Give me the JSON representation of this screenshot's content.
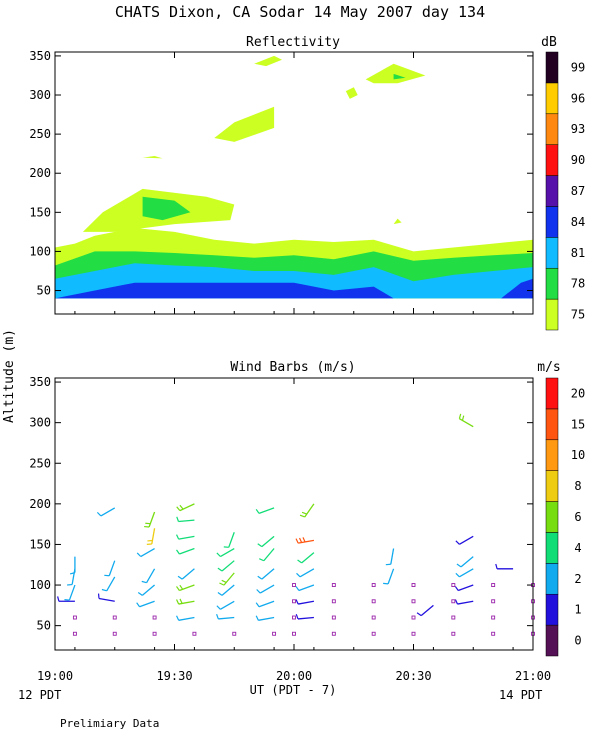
{
  "title": "CHATS Dixon, CA  Sodar  14 May 2007  day 134",
  "footer_note": "Prelimiary Data",
  "xaxis": {
    "xlabel": "UT  (PDT - 7)",
    "ticks": [
      "19:00",
      "19:30",
      "20:00",
      "20:30",
      "21:00"
    ],
    "tick_values_min": [
      0,
      30,
      60,
      90,
      120
    ],
    "range_min": [
      0,
      120
    ],
    "left_date": "12 PDT",
    "right_date": "14 PDT"
  },
  "ylabel": "Altitude (m)",
  "chart_data": [
    {
      "type": "heatmap",
      "title": "Reflectivity",
      "ylim": [
        20,
        355
      ],
      "yticks": [
        50,
        100,
        150,
        200,
        250,
        300,
        350
      ],
      "colorbar": {
        "unit": "dB",
        "levels": [
          "75",
          "78",
          "81",
          "84",
          "87",
          "90",
          "93",
          "96",
          "99"
        ],
        "colors": [
          "#ccff22",
          "#22dd44",
          "#11bbff",
          "#1133ee",
          "#5511aa",
          "#ff1111",
          "#ff8811",
          "#ffcc00",
          "#220022"
        ]
      },
      "layers": [
        {
          "level": "75",
          "color": "#ccff22",
          "top": [
            [
              0,
              105
            ],
            [
              5,
              110
            ],
            [
              10,
              120
            ],
            [
              20,
              130
            ],
            [
              30,
              125
            ],
            [
              40,
              115
            ],
            [
              50,
              110
            ],
            [
              60,
              115
            ],
            [
              70,
              112
            ],
            [
              80,
              115
            ],
            [
              90,
              100
            ],
            [
              100,
              105
            ],
            [
              110,
              110
            ],
            [
              120,
              115
            ]
          ],
          "bottom": [
            [
              0,
              40
            ],
            [
              120,
              40
            ]
          ]
        },
        {
          "level": "78",
          "color": "#22dd44",
          "top": [
            [
              0,
              82
            ],
            [
              10,
              100
            ],
            [
              20,
              100
            ],
            [
              30,
              98
            ],
            [
              40,
              95
            ],
            [
              50,
              92
            ],
            [
              60,
              95
            ],
            [
              70,
              90
            ],
            [
              80,
              100
            ],
            [
              90,
              88
            ],
            [
              100,
              92
            ],
            [
              110,
              95
            ],
            [
              120,
              98
            ]
          ],
          "bottom": [
            [
              0,
              40
            ],
            [
              120,
              40
            ]
          ]
        },
        {
          "level": "81",
          "color": "#11bbff",
          "top": [
            [
              0,
              65
            ],
            [
              10,
              75
            ],
            [
              20,
              85
            ],
            [
              30,
              82
            ],
            [
              40,
              80
            ],
            [
              50,
              75
            ],
            [
              60,
              75
            ],
            [
              70,
              70
            ],
            [
              80,
              80
            ],
            [
              90,
              62
            ],
            [
              100,
              70
            ],
            [
              110,
              75
            ],
            [
              120,
              80
            ]
          ],
          "bottom": [
            [
              0,
              40
            ],
            [
              120,
              40
            ]
          ]
        },
        {
          "level": "84",
          "color": "#1133ee",
          "top": [
            [
              0,
              40
            ],
            [
              10,
              50
            ],
            [
              20,
              60
            ],
            [
              30,
              60
            ],
            [
              40,
              60
            ],
            [
              50,
              60
            ],
            [
              60,
              60
            ],
            [
              70,
              50
            ],
            [
              80,
              55
            ],
            [
              85,
              40
            ],
            [
              112,
              40
            ],
            [
              117,
              60
            ],
            [
              120,
              65
            ]
          ],
          "bottom": [
            [
              0,
              40
            ],
            [
              120,
              40
            ]
          ]
        }
      ],
      "blobs": [
        {
          "level": "75",
          "color": "#ccff22",
          "points": [
            [
              7,
              125
            ],
            [
              12,
              150
            ],
            [
              22,
              180
            ],
            [
              38,
              170
            ],
            [
              45,
              160
            ],
            [
              44,
              140
            ],
            [
              30,
              135
            ],
            [
              15,
              125
            ]
          ]
        },
        {
          "level": "78",
          "color": "#22dd44",
          "points": [
            [
              22,
              160
            ],
            [
              22,
              170
            ],
            [
              30,
              165
            ],
            [
              34,
              150
            ],
            [
              27,
              140
            ],
            [
              22,
              145
            ]
          ]
        },
        {
          "level": "75",
          "color": "#ccff22",
          "points": [
            [
              40,
              245
            ],
            [
              45,
              265
            ],
            [
              55,
              285
            ],
            [
              55,
              258
            ],
            [
              45,
              240
            ]
          ]
        },
        {
          "level": "75",
          "color": "#ccff22",
          "points": [
            [
              50,
              340
            ],
            [
              55,
              350
            ],
            [
              57,
              345
            ],
            [
              53,
              337
            ]
          ]
        },
        {
          "level": "75",
          "color": "#ccff22",
          "points": [
            [
              73,
              305
            ],
            [
              75,
              310
            ],
            [
              76,
              300
            ],
            [
              74,
              295
            ]
          ]
        },
        {
          "level": "75",
          "color": "#ccff22",
          "points": [
            [
              78,
              320
            ],
            [
              85,
              340
            ],
            [
              93,
              325
            ],
            [
              86,
              315
            ],
            [
              80,
              315
            ]
          ]
        },
        {
          "level": "78",
          "color": "#22dd44",
          "points": [
            [
              85,
              320
            ],
            [
              85,
              327
            ],
            [
              88,
              322
            ]
          ]
        },
        {
          "level": "75",
          "color": "#ccff22",
          "points": [
            [
              22,
              220
            ],
            [
              25,
              222
            ],
            [
              27,
              219
            ]
          ]
        },
        {
          "level": "75",
          "color": "#ccff22",
          "points": [
            [
              85,
              135
            ],
            [
              86,
              142
            ],
            [
              87,
              137
            ]
          ]
        }
      ]
    },
    {
      "type": "scatter",
      "title": "Wind Barbs (m/s)",
      "ylim": [
        20,
        355
      ],
      "yticks": [
        50,
        100,
        150,
        200,
        250,
        300,
        350
      ],
      "colorbar": {
        "unit": "m/s",
        "levels": [
          "0",
          "1",
          "2",
          "4",
          "6",
          "8",
          "10",
          "15",
          "20"
        ],
        "colors": [
          "#551155",
          "#2211dd",
          "#11aaee",
          "#11dd77",
          "#77dd11",
          "#eecc11",
          "#ff9911",
          "#ff5511",
          "#ff1111"
        ]
      },
      "barbs": [
        {
          "t": 5,
          "alt": 80,
          "speed": 1,
          "dir": 270
        },
        {
          "t": 5,
          "alt": 100,
          "speed": 2,
          "dir": 200
        },
        {
          "t": 5,
          "alt": 120,
          "speed": 2,
          "dir": 190
        },
        {
          "t": 5,
          "alt": 135,
          "speed": 2,
          "dir": 180
        },
        {
          "t": 15,
          "alt": 80,
          "speed": 1,
          "dir": 280
        },
        {
          "t": 15,
          "alt": 110,
          "speed": 2,
          "dir": 210
        },
        {
          "t": 15,
          "alt": 130,
          "speed": 2,
          "dir": 200
        },
        {
          "t": 15,
          "alt": 195,
          "speed": 2,
          "dir": 240
        },
        {
          "t": 25,
          "alt": 80,
          "speed": 2,
          "dir": 250
        },
        {
          "t": 25,
          "alt": 100,
          "speed": 2,
          "dir": 230
        },
        {
          "t": 25,
          "alt": 120,
          "speed": 2,
          "dir": 210
        },
        {
          "t": 25,
          "alt": 145,
          "speed": 2,
          "dir": 240
        },
        {
          "t": 25,
          "alt": 170,
          "speed": 8,
          "dir": 190
        },
        {
          "t": 25,
          "alt": 190,
          "speed": 6,
          "dir": 200
        },
        {
          "t": 35,
          "alt": 60,
          "speed": 2,
          "dir": 260
        },
        {
          "t": 35,
          "alt": 80,
          "speed": 6,
          "dir": 260
        },
        {
          "t": 35,
          "alt": 100,
          "speed": 6,
          "dir": 250
        },
        {
          "t": 35,
          "alt": 120,
          "speed": 2,
          "dir": 230
        },
        {
          "t": 35,
          "alt": 145,
          "speed": 4,
          "dir": 250
        },
        {
          "t": 35,
          "alt": 160,
          "speed": 4,
          "dir": 260
        },
        {
          "t": 35,
          "alt": 180,
          "speed": 4,
          "dir": 265
        },
        {
          "t": 35,
          "alt": 200,
          "speed": 6,
          "dir": 245
        },
        {
          "t": 45,
          "alt": 60,
          "speed": 2,
          "dir": 265
        },
        {
          "t": 45,
          "alt": 80,
          "speed": 2,
          "dir": 240
        },
        {
          "t": 45,
          "alt": 100,
          "speed": 2,
          "dir": 230
        },
        {
          "t": 45,
          "alt": 115,
          "speed": 6,
          "dir": 220
        },
        {
          "t": 45,
          "alt": 130,
          "speed": 4,
          "dir": 230
        },
        {
          "t": 45,
          "alt": 145,
          "speed": 4,
          "dir": 240
        },
        {
          "t": 45,
          "alt": 165,
          "speed": 4,
          "dir": 200
        },
        {
          "t": 55,
          "alt": 60,
          "speed": 2,
          "dir": 260
        },
        {
          "t": 55,
          "alt": 80,
          "speed": 2,
          "dir": 250
        },
        {
          "t": 55,
          "alt": 100,
          "speed": 2,
          "dir": 240
        },
        {
          "t": 55,
          "alt": 120,
          "speed": 2,
          "dir": 230
        },
        {
          "t": 55,
          "alt": 145,
          "speed": 4,
          "dir": 220
        },
        {
          "t": 55,
          "alt": 160,
          "speed": 4,
          "dir": 230
        },
        {
          "t": 55,
          "alt": 195,
          "speed": 4,
          "dir": 250
        },
        {
          "t": 65,
          "alt": 60,
          "speed": 1,
          "dir": 265
        },
        {
          "t": 65,
          "alt": 80,
          "speed": 1,
          "dir": 260
        },
        {
          "t": 65,
          "alt": 100,
          "speed": 2,
          "dir": 250
        },
        {
          "t": 65,
          "alt": 120,
          "speed": 2,
          "dir": 240
        },
        {
          "t": 65,
          "alt": 140,
          "speed": 4,
          "dir": 230
        },
        {
          "t": 65,
          "alt": 155,
          "speed": 15,
          "dir": 260
        },
        {
          "t": 65,
          "alt": 200,
          "speed": 6,
          "dir": 215
        },
        {
          "t": 85,
          "alt": 120,
          "speed": 2,
          "dir": 200
        },
        {
          "t": 85,
          "alt": 145,
          "speed": 2,
          "dir": 190
        },
        {
          "t": 95,
          "alt": 75,
          "speed": 1,
          "dir": 230
        },
        {
          "t": 105,
          "alt": 80,
          "speed": 1,
          "dir": 260
        },
        {
          "t": 105,
          "alt": 100,
          "speed": 1,
          "dir": 250
        },
        {
          "t": 105,
          "alt": 120,
          "speed": 2,
          "dir": 240
        },
        {
          "t": 105,
          "alt": 135,
          "speed": 2,
          "dir": 230
        },
        {
          "t": 105,
          "alt": 160,
          "speed": 1,
          "dir": 240
        },
        {
          "t": 105,
          "alt": 295,
          "speed": 6,
          "dir": 300
        },
        {
          "t": 115,
          "alt": 120,
          "speed": 1,
          "dir": 270
        }
      ],
      "calm_marks": [
        {
          "t": 5,
          "alt": 40
        },
        {
          "t": 5,
          "alt": 60
        },
        {
          "t": 15,
          "alt": 40
        },
        {
          "t": 15,
          "alt": 60
        },
        {
          "t": 25,
          "alt": 40
        },
        {
          "t": 25,
          "alt": 60
        },
        {
          "t": 35,
          "alt": 40
        },
        {
          "t": 45,
          "alt": 40
        },
        {
          "t": 55,
          "alt": 40
        },
        {
          "t": 60,
          "alt": 40
        },
        {
          "t": 60,
          "alt": 60
        },
        {
          "t": 60,
          "alt": 80
        },
        {
          "t": 60,
          "alt": 100
        },
        {
          "t": 70,
          "alt": 40
        },
        {
          "t": 70,
          "alt": 60
        },
        {
          "t": 70,
          "alt": 80
        },
        {
          "t": 70,
          "alt": 100
        },
        {
          "t": 80,
          "alt": 40
        },
        {
          "t": 80,
          "alt": 60
        },
        {
          "t": 80,
          "alt": 80
        },
        {
          "t": 80,
          "alt": 100
        },
        {
          "t": 90,
          "alt": 40
        },
        {
          "t": 90,
          "alt": 60
        },
        {
          "t": 90,
          "alt": 80
        },
        {
          "t": 90,
          "alt": 100
        },
        {
          "t": 100,
          "alt": 40
        },
        {
          "t": 100,
          "alt": 60
        },
        {
          "t": 100,
          "alt": 80
        },
        {
          "t": 100,
          "alt": 100
        },
        {
          "t": 110,
          "alt": 40
        },
        {
          "t": 110,
          "alt": 60
        },
        {
          "t": 110,
          "alt": 80
        },
        {
          "t": 110,
          "alt": 100
        },
        {
          "t": 120,
          "alt": 40
        },
        {
          "t": 120,
          "alt": 60
        },
        {
          "t": 120,
          "alt": 80
        },
        {
          "t": 120,
          "alt": 100
        }
      ]
    }
  ]
}
